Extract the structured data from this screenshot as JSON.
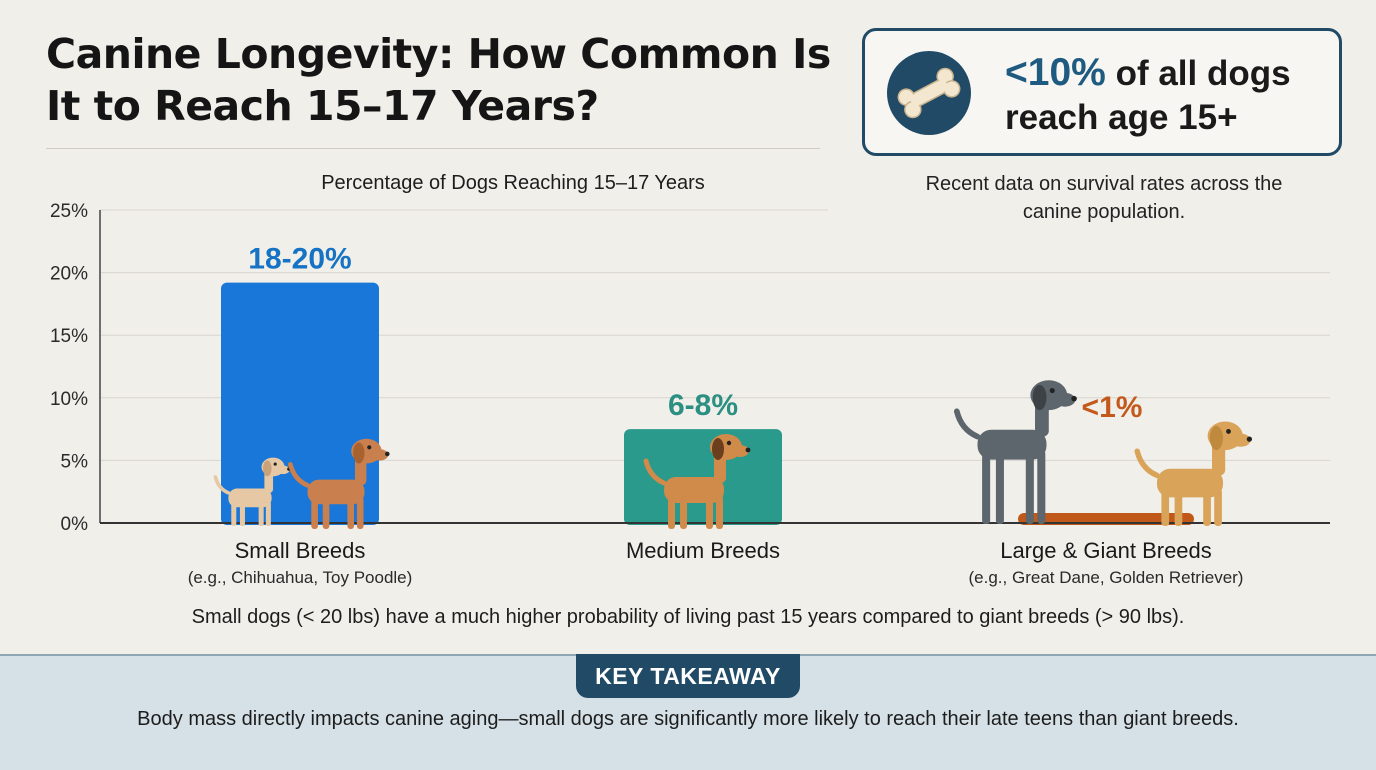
{
  "title": "Canine Longevity: How Common Is It to Reach 15–17 Years?",
  "callout": {
    "highlight": "<10%",
    "text_rest": "of all dogs reach age 15+",
    "icon": "bone-icon",
    "subtext": "Recent data on survival rates across the canine population."
  },
  "chart_data": {
    "type": "bar",
    "title": "Percentage of Dogs Reaching 15–17 Years",
    "categories": [
      "Small Breeds",
      "Medium Breeds",
      "Large & Giant Breeds"
    ],
    "subcategories": [
      "(e.g., Chihuahua, Toy Poodle)",
      "",
      "(e.g., Great Dane, Golden Retriever)"
    ],
    "values": [
      19.2,
      7.5,
      0.5
    ],
    "value_labels": [
      "18-20%",
      "6-8%",
      "<1%"
    ],
    "bar_colors": [
      "#1877d8",
      "#2a9a8c",
      "#c0581a"
    ],
    "label_colors": [
      "#1673c4",
      "#2b8f82",
      "#c35a1c"
    ],
    "ylim": [
      0,
      25
    ],
    "yticks": [
      0,
      5,
      10,
      15,
      20,
      25
    ],
    "ytick_labels": [
      "0%",
      "5%",
      "10%",
      "15%",
      "20%",
      "25%"
    ],
    "xlabel": "",
    "ylabel": "",
    "grid": true
  },
  "summary": "Small dogs (< 20 lbs) have a much higher probability of living past 15 years compared to giant breeds (> 90 lbs).",
  "takeaway": {
    "badge": "KEY TAKEAWAY",
    "text": "Body mass directly impacts canine aging—small dogs are significantly more likely to reach their late teens than giant breeds."
  }
}
